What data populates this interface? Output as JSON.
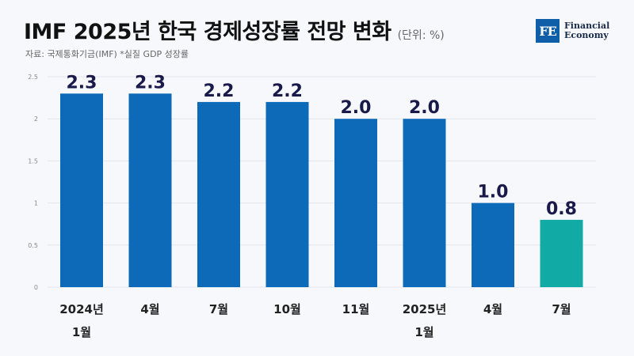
{
  "header": {
    "title": "IMF 2025년 한국 경제성장률 전망 변화",
    "unit": "(단위: %)",
    "source": "자료: 국제통화기금(IMF)  *실질 GDP 성장률"
  },
  "logo": {
    "mark": "FE",
    "line1": "Financial",
    "line2": "Economy"
  },
  "chart_data": {
    "type": "bar",
    "categories": [
      "2024년 1월",
      "4월",
      "7월",
      "10월",
      "11월",
      "2025년 1월",
      "4월",
      "7월"
    ],
    "category_lines": [
      [
        "2024년",
        "1월"
      ],
      [
        "4월"
      ],
      [
        "7월"
      ],
      [
        "10월"
      ],
      [
        "11월"
      ],
      [
        "2025년",
        "1월"
      ],
      [
        "4월"
      ],
      [
        "7월"
      ]
    ],
    "values": [
      2.3,
      2.3,
      2.2,
      2.2,
      2.0,
      2.0,
      1.0,
      0.8
    ],
    "value_labels": [
      "2.3",
      "2.3",
      "2.2",
      "2.2",
      "2.0",
      "2.0",
      "1.0",
      "0.8"
    ],
    "ylim": [
      0,
      2.5
    ],
    "yticks": [
      0,
      0.5,
      1,
      1.5,
      2,
      2.5
    ],
    "ytick_labels": [
      "0",
      "0.5",
      "1",
      "1.5",
      "2",
      "2.5"
    ],
    "grid": true,
    "colors": {
      "bar": "#0d6ab8",
      "highlight": "#12aaa5",
      "value_label": "#1a1a4a",
      "tick": "#888888",
      "category": "#222222",
      "grid": "#e3e6ec"
    },
    "highlight_index": 7
  }
}
